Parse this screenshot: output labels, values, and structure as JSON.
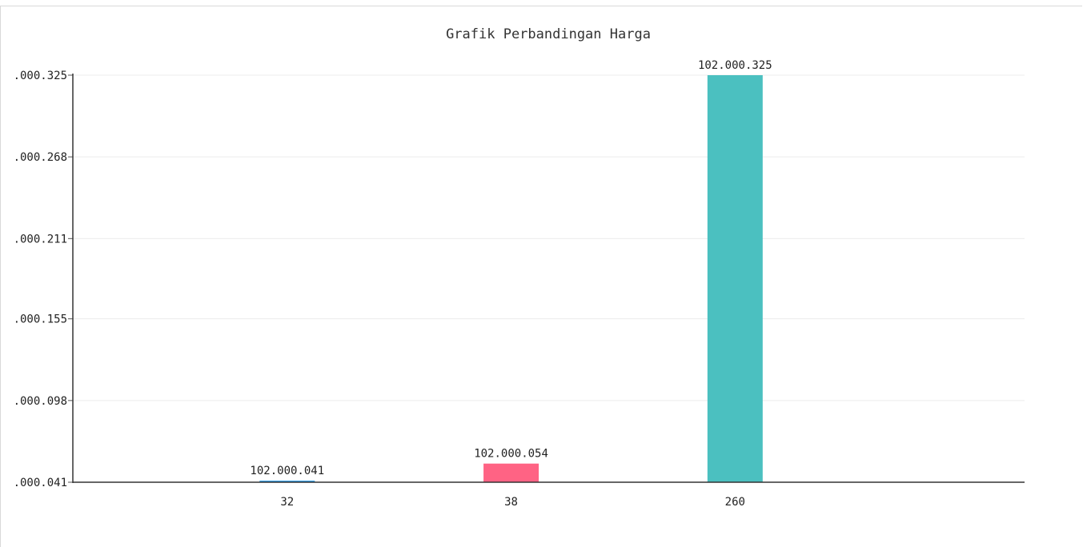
{
  "chart_data": {
    "type": "bar",
    "title": "Grafik Perbandingan Harga",
    "xlabel": "",
    "ylabel": "",
    "categories": [
      "32",
      "38",
      "260"
    ],
    "values": [
      102000041,
      102000054,
      102000325
    ],
    "value_labels": [
      "102.000.041",
      "102.000.054",
      "102.000.325"
    ],
    "colors": [
      "#36a2eb",
      "#ff6384",
      "#4bc0c0"
    ],
    "ylim": [
      102000041,
      102000325
    ],
    "y_ticks": [
      102000041,
      102000098,
      102000155,
      102000211,
      102000268,
      102000325
    ],
    "y_tick_labels": [
      ".000.041",
      ".000.098",
      ".000.155",
      ".000.211",
      ".000.268",
      ".000.325"
    ],
    "grid": true,
    "legend": "none"
  }
}
